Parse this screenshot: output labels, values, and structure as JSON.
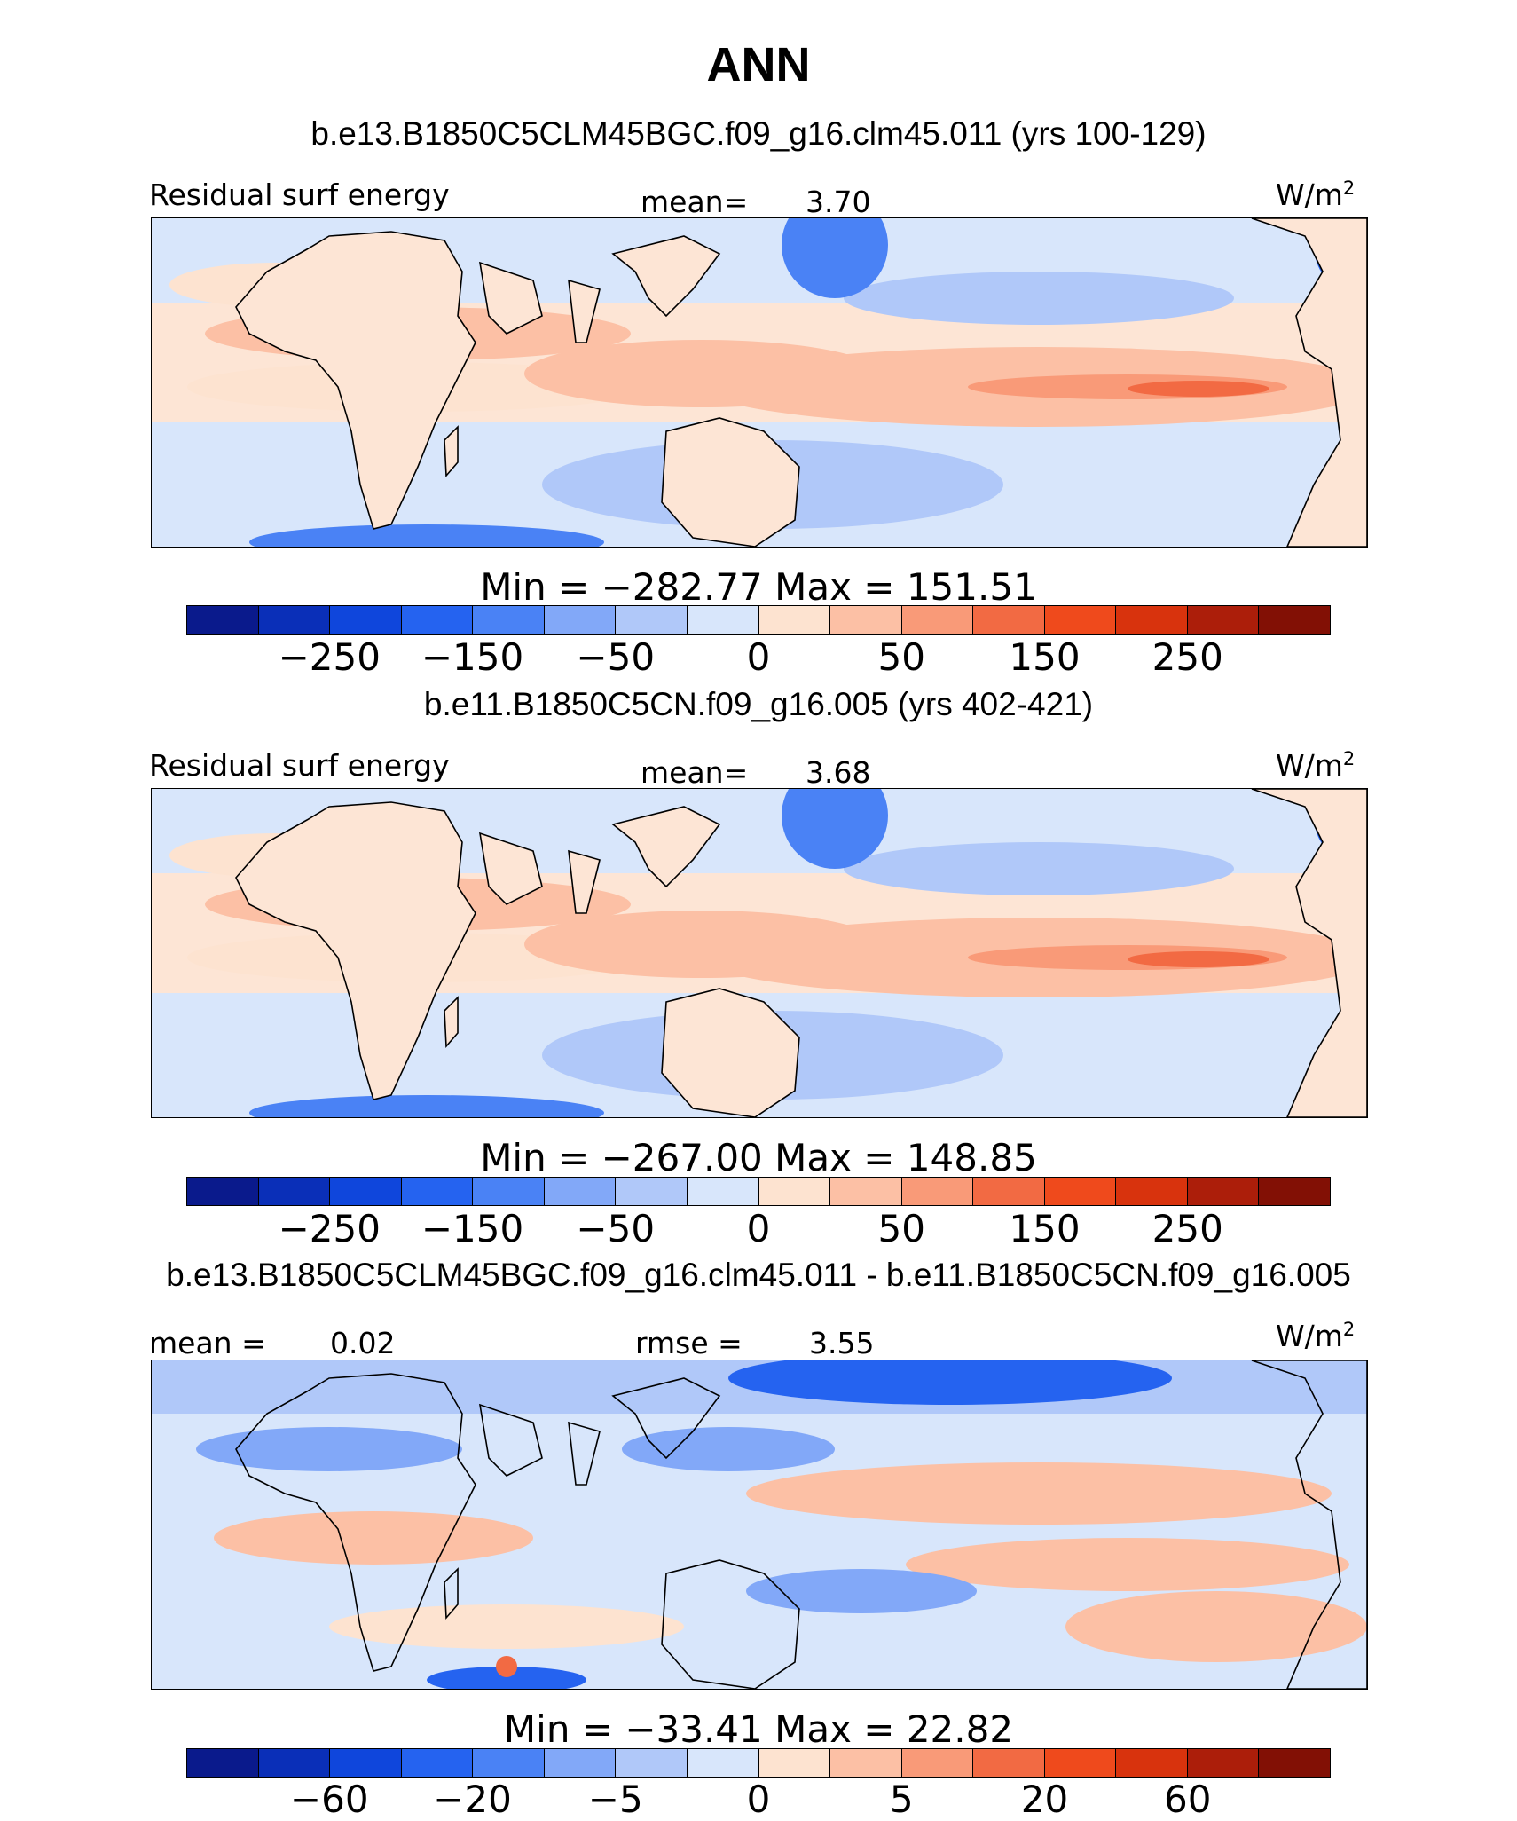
{
  "figure": {
    "title": "ANN",
    "units_label": "W/m",
    "units_superscript": "2"
  },
  "palette": [
    "#0a1a8c",
    "#0a2fb8",
    "#0f46dc",
    "#2563f0",
    "#4a82f5",
    "#82a8f8",
    "#b0c8f9",
    "#d8e6fb",
    "#fde3d0",
    "#fcc0a5",
    "#f99a78",
    "#f26a43",
    "#ef4a1c",
    "#d8330d",
    "#ac1e0a",
    "#821005"
  ],
  "land_color": "#fde5d5",
  "chart_data": [
    {
      "type": "contour-map",
      "panel": "top",
      "title": "b.e13.B1850C5CLM45BGC.f09_g16.clm45.011 (yrs 100-129)",
      "variable": "Residual surf energy",
      "mean_label": "mean=",
      "mean_value": "3.70",
      "min_max": "Min = −282.77 Max = 151.51",
      "min": -282.77,
      "max": 151.51,
      "colorbar_levels": [
        -300,
        -250,
        -200,
        -150,
        -100,
        -50,
        -25,
        0,
        25,
        50,
        100,
        150,
        200,
        250,
        300
      ],
      "colorbar_tick_labels": [
        "−250",
        "−150",
        "−50",
        "0",
        "50",
        "150",
        "250"
      ]
    },
    {
      "type": "contour-map",
      "panel": "middle",
      "title": "b.e11.B1850C5CN.f09_g16.005 (yrs 402-421)",
      "variable": "Residual surf energy",
      "mean_label": "mean=",
      "mean_value": "3.68",
      "min_max": "Min = −267.00 Max = 148.85",
      "min": -267.0,
      "max": 148.85,
      "colorbar_levels": [
        -300,
        -250,
        -200,
        -150,
        -100,
        -50,
        -25,
        0,
        25,
        50,
        100,
        150,
        200,
        250,
        300
      ],
      "colorbar_tick_labels": [
        "−250",
        "−150",
        "−50",
        "0",
        "50",
        "150",
        "250"
      ]
    },
    {
      "type": "contour-map",
      "panel": "bottom",
      "title": "b.e13.B1850C5CLM45BGC.f09_g16.clm45.011 - b.e11.B1850C5CN.f09_g16.005",
      "mean_label": "mean =",
      "mean_value": "0.02",
      "rmse_label": "rmse =",
      "rmse_value": "3.55",
      "min_max": "Min = −33.41 Max = 22.82",
      "min": -33.41,
      "max": 22.82,
      "colorbar_levels": [
        -80,
        -60,
        -40,
        -20,
        -10,
        -5,
        -2,
        0,
        2,
        5,
        10,
        20,
        40,
        60,
        80
      ],
      "colorbar_tick_labels": [
        "−60",
        "−20",
        "−5",
        "0",
        "5",
        "20",
        "60"
      ]
    }
  ]
}
